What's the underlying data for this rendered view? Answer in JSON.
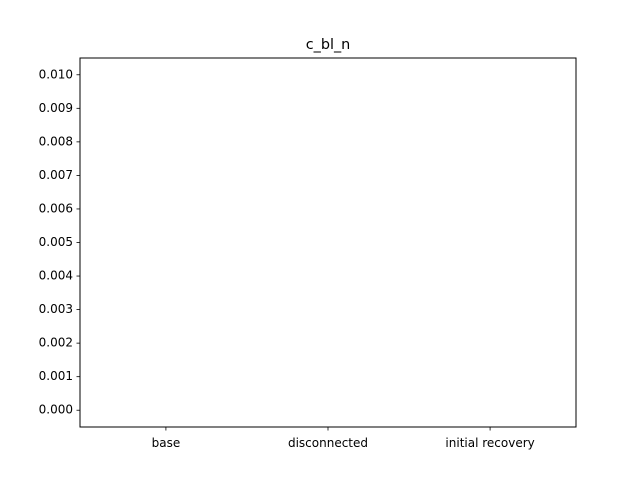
{
  "chart_data": {
    "type": "bar",
    "title": "c_bl_n",
    "xlabel": "",
    "ylabel": "",
    "categories": [
      "base",
      "disconnected",
      "initial recovery"
    ],
    "series": [
      {
        "values": [
          0,
          0,
          0
        ]
      }
    ],
    "ylim": [
      -0.0005,
      0.0105
    ],
    "yticks": [
      "0.000",
      "0.001",
      "0.002",
      "0.003",
      "0.004",
      "0.005",
      "0.006",
      "0.007",
      "0.008",
      "0.009",
      "0.010"
    ],
    "grid": false,
    "legend": "none"
  }
}
